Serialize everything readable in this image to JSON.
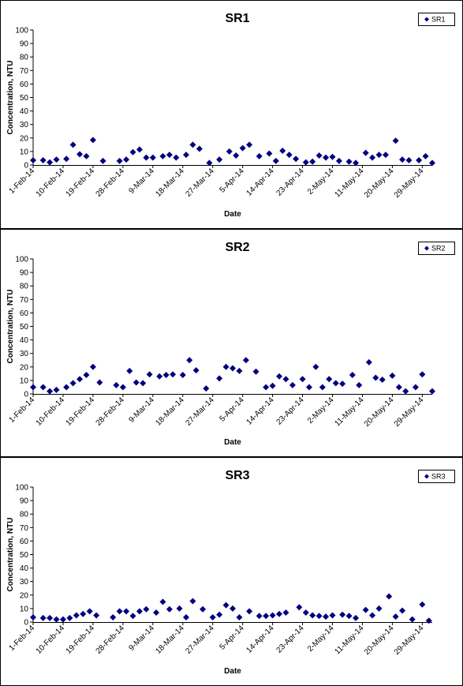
{
  "chart_data": [
    {
      "type": "scatter",
      "title": "SR1",
      "xlabel": "Date",
      "ylabel": "Concentration, NTU",
      "ylim": [
        0,
        100
      ],
      "yticks": [
        "0",
        "10",
        "20",
        "30",
        "40",
        "50",
        "60",
        "70",
        "80",
        "90",
        "100"
      ],
      "xticks": [
        "1-Feb-14",
        "10-Feb-14",
        "19-Feb-14",
        "28-Feb-14",
        "9-Mar-14",
        "18-Mar-14",
        "27-Mar-14",
        "5-Apr-14",
        "14-Apr-14",
        "23-Apr-14",
        "2-May-14",
        "11-May-14",
        "20-May-14",
        "29-May-14"
      ],
      "grid": false,
      "legend": "top-right",
      "color": "#00007f",
      "series": [
        {
          "name": "SR1",
          "points": [
            [
              "1-Feb-14",
              3.5
            ],
            [
              "4-Feb-14",
              3.5
            ],
            [
              "6-Feb-14",
              2
            ],
            [
              "8-Feb-14",
              4
            ],
            [
              "11-Feb-14",
              4.5
            ],
            [
              "13-Feb-14",
              15
            ],
            [
              "15-Feb-14",
              8
            ],
            [
              "17-Feb-14",
              6.5
            ],
            [
              "19-Feb-14",
              18.5
            ],
            [
              "22-Feb-14",
              3
            ],
            [
              "27-Feb-14",
              3
            ],
            [
              "1-Mar-14",
              4
            ],
            [
              "3-Mar-14",
              9.5
            ],
            [
              "5-Mar-14",
              11.5
            ],
            [
              "7-Mar-14",
              5.5
            ],
            [
              "9-Mar-14",
              5.5
            ],
            [
              "12-Mar-14",
              6.5
            ],
            [
              "14-Mar-14",
              7.5
            ],
            [
              "16-Mar-14",
              5.5
            ],
            [
              "19-Mar-14",
              7.5
            ],
            [
              "21-Mar-14",
              15
            ],
            [
              "23-Mar-14",
              12
            ],
            [
              "26-Mar-14",
              1.5
            ],
            [
              "29-Mar-14",
              4
            ],
            [
              "1-Apr-14",
              10
            ],
            [
              "3-Apr-14",
              7
            ],
            [
              "5-Apr-14",
              12.5
            ],
            [
              "7-Apr-14",
              15
            ],
            [
              "10-Apr-14",
              6.5
            ],
            [
              "13-Apr-14",
              8.5
            ],
            [
              "15-Apr-14",
              3
            ],
            [
              "17-Apr-14",
              10.5
            ],
            [
              "19-Apr-14",
              7.5
            ],
            [
              "21-Apr-14",
              4.5
            ],
            [
              "24-Apr-14",
              2
            ],
            [
              "26-Apr-14",
              2.5
            ],
            [
              "28-Apr-14",
              7
            ],
            [
              "30-Apr-14",
              5.5
            ],
            [
              "2-May-14",
              6
            ],
            [
              "4-May-14",
              3
            ],
            [
              "7-May-14",
              2.5
            ],
            [
              "9-May-14",
              1.5
            ],
            [
              "12-May-14",
              9
            ],
            [
              "14-May-14",
              5.5
            ],
            [
              "16-May-14",
              7.5
            ],
            [
              "18-May-14",
              7.5
            ],
            [
              "21-May-14",
              18
            ],
            [
              "23-May-14",
              4
            ],
            [
              "25-May-14",
              3.5
            ],
            [
              "28-May-14",
              3.5
            ],
            [
              "30-May-14",
              6.5
            ],
            [
              "1-Jun-14",
              1.5
            ]
          ]
        }
      ]
    },
    {
      "type": "scatter",
      "title": "SR2",
      "xlabel": "Date",
      "ylabel": "Concentration, NTU",
      "ylim": [
        0,
        100
      ],
      "yticks": [
        "0",
        "10",
        "20",
        "30",
        "40",
        "50",
        "60",
        "70",
        "80",
        "90",
        "100"
      ],
      "xticks": [
        "1-Feb-14",
        "10-Feb-14",
        "19-Feb-14",
        "28-Feb-14",
        "9-Mar-14",
        "18-Mar-14",
        "27-Mar-14",
        "5-Apr-14",
        "14-Apr-14",
        "23-Apr-14",
        "2-May-14",
        "11-May-14",
        "20-May-14",
        "29-May-14"
      ],
      "grid": false,
      "legend": "top-right",
      "color": "#00007f",
      "series": [
        {
          "name": "SR2",
          "points": [
            [
              "1-Feb-14",
              5
            ],
            [
              "4-Feb-14",
              5
            ],
            [
              "6-Feb-14",
              2
            ],
            [
              "8-Feb-14",
              3
            ],
            [
              "11-Feb-14",
              5
            ],
            [
              "13-Feb-14",
              8
            ],
            [
              "15-Feb-14",
              11
            ],
            [
              "17-Feb-14",
              14
            ],
            [
              "19-Feb-14",
              20
            ],
            [
              "21-Feb-14",
              8.5
            ],
            [
              "26-Feb-14",
              6.5
            ],
            [
              "28-Feb-14",
              5
            ],
            [
              "2-Mar-14",
              17
            ],
            [
              "4-Mar-14",
              8.5
            ],
            [
              "6-Mar-14",
              8
            ],
            [
              "8-Mar-14",
              14.5
            ],
            [
              "11-Mar-14",
              13
            ],
            [
              "13-Mar-14",
              14
            ],
            [
              "15-Mar-14",
              14.5
            ],
            [
              "18-Mar-14",
              14
            ],
            [
              "20-Mar-14",
              25
            ],
            [
              "22-Mar-14",
              17.5
            ],
            [
              "25-Mar-14",
              4
            ],
            [
              "29-Mar-14",
              11.5
            ],
            [
              "31-Mar-14",
              20
            ],
            [
              "2-Apr-14",
              19
            ],
            [
              "4-Apr-14",
              17
            ],
            [
              "6-Apr-14",
              25
            ],
            [
              "9-Apr-14",
              16.5
            ],
            [
              "12-Apr-14",
              5
            ],
            [
              "14-Apr-14",
              6
            ],
            [
              "16-Apr-14",
              13
            ],
            [
              "18-Apr-14",
              11
            ],
            [
              "20-Apr-14",
              6.5
            ],
            [
              "23-Apr-14",
              11
            ],
            [
              "25-Apr-14",
              5
            ],
            [
              "27-Apr-14",
              20
            ],
            [
              "29-Apr-14",
              5
            ],
            [
              "1-May-14",
              11
            ],
            [
              "3-May-14",
              8
            ],
            [
              "5-May-14",
              7.5
            ],
            [
              "8-May-14",
              14
            ],
            [
              "10-May-14",
              6.5
            ],
            [
              "13-May-14",
              23.5
            ],
            [
              "15-May-14",
              12
            ],
            [
              "17-May-14",
              10.5
            ],
            [
              "20-May-14",
              13.5
            ],
            [
              "22-May-14",
              5
            ],
            [
              "24-May-14",
              2
            ],
            [
              "27-May-14",
              5
            ],
            [
              "29-May-14",
              14.5
            ],
            [
              "1-Jun-14",
              2
            ]
          ]
        }
      ]
    },
    {
      "type": "scatter",
      "title": "SR3",
      "xlabel": "Date",
      "ylabel": "Concentration, NTU",
      "ylim": [
        0,
        100
      ],
      "yticks": [
        "0",
        "10",
        "20",
        "30",
        "40",
        "50",
        "60",
        "70",
        "80",
        "90",
        "100"
      ],
      "xticks": [
        "1-Feb-14",
        "10-Feb-14",
        "19-Feb-14",
        "28-Feb-14",
        "9-Mar-14",
        "18-Mar-14",
        "27-Mar-14",
        "5-Apr-14",
        "14-Apr-14",
        "23-Apr-14",
        "2-May-14",
        "11-May-14",
        "20-May-14",
        "29-May-14"
      ],
      "grid": false,
      "legend": "top-right",
      "color": "#00007f",
      "series": [
        {
          "name": "SR3",
          "points": [
            [
              "1-Feb-14",
              3.5
            ],
            [
              "4-Feb-14",
              3
            ],
            [
              "6-Feb-14",
              3
            ],
            [
              "8-Feb-14",
              2
            ],
            [
              "10-Feb-14",
              2
            ],
            [
              "12-Feb-14",
              3
            ],
            [
              "14-Feb-14",
              5
            ],
            [
              "16-Feb-14",
              6
            ],
            [
              "18-Feb-14",
              8
            ],
            [
              "20-Feb-14",
              5
            ],
            [
              "25-Feb-14",
              3.5
            ],
            [
              "27-Feb-14",
              8
            ],
            [
              "1-Mar-14",
              8
            ],
            [
              "3-Mar-14",
              4.5
            ],
            [
              "5-Mar-14",
              8
            ],
            [
              "7-Mar-14",
              9.5
            ],
            [
              "10-Mar-14",
              7
            ],
            [
              "12-Mar-14",
              15
            ],
            [
              "14-Mar-14",
              9.5
            ],
            [
              "17-Mar-14",
              10
            ],
            [
              "19-Mar-14",
              3.5
            ],
            [
              "21-Mar-14",
              15.5
            ],
            [
              "24-Mar-14",
              9.5
            ],
            [
              "27-Mar-14",
              3.5
            ],
            [
              "29-Mar-14",
              5.5
            ],
            [
              "31-Mar-14",
              12.5
            ],
            [
              "2-Apr-14",
              10
            ],
            [
              "4-Apr-14",
              3.5
            ],
            [
              "7-Apr-14",
              8
            ],
            [
              "10-Apr-14",
              4.5
            ],
            [
              "12-Apr-14",
              4.5
            ],
            [
              "14-Apr-14",
              5
            ],
            [
              "16-Apr-14",
              6
            ],
            [
              "18-Apr-14",
              7
            ],
            [
              "22-Apr-14",
              11
            ],
            [
              "24-Apr-14",
              7
            ],
            [
              "26-Apr-14",
              5
            ],
            [
              "28-Apr-14",
              4.5
            ],
            [
              "30-Apr-14",
              4
            ],
            [
              "2-May-14",
              5
            ],
            [
              "5-May-14",
              5.5
            ],
            [
              "7-May-14",
              4.5
            ],
            [
              "9-May-14",
              3
            ],
            [
              "12-May-14",
              9
            ],
            [
              "14-May-14",
              5
            ],
            [
              "16-May-14",
              10
            ],
            [
              "19-May-14",
              19
            ],
            [
              "21-May-14",
              4
            ],
            [
              "23-May-14",
              8.5
            ],
            [
              "26-May-14",
              2
            ],
            [
              "29-May-14",
              13
            ],
            [
              "31-May-14",
              1
            ]
          ]
        }
      ]
    }
  ]
}
